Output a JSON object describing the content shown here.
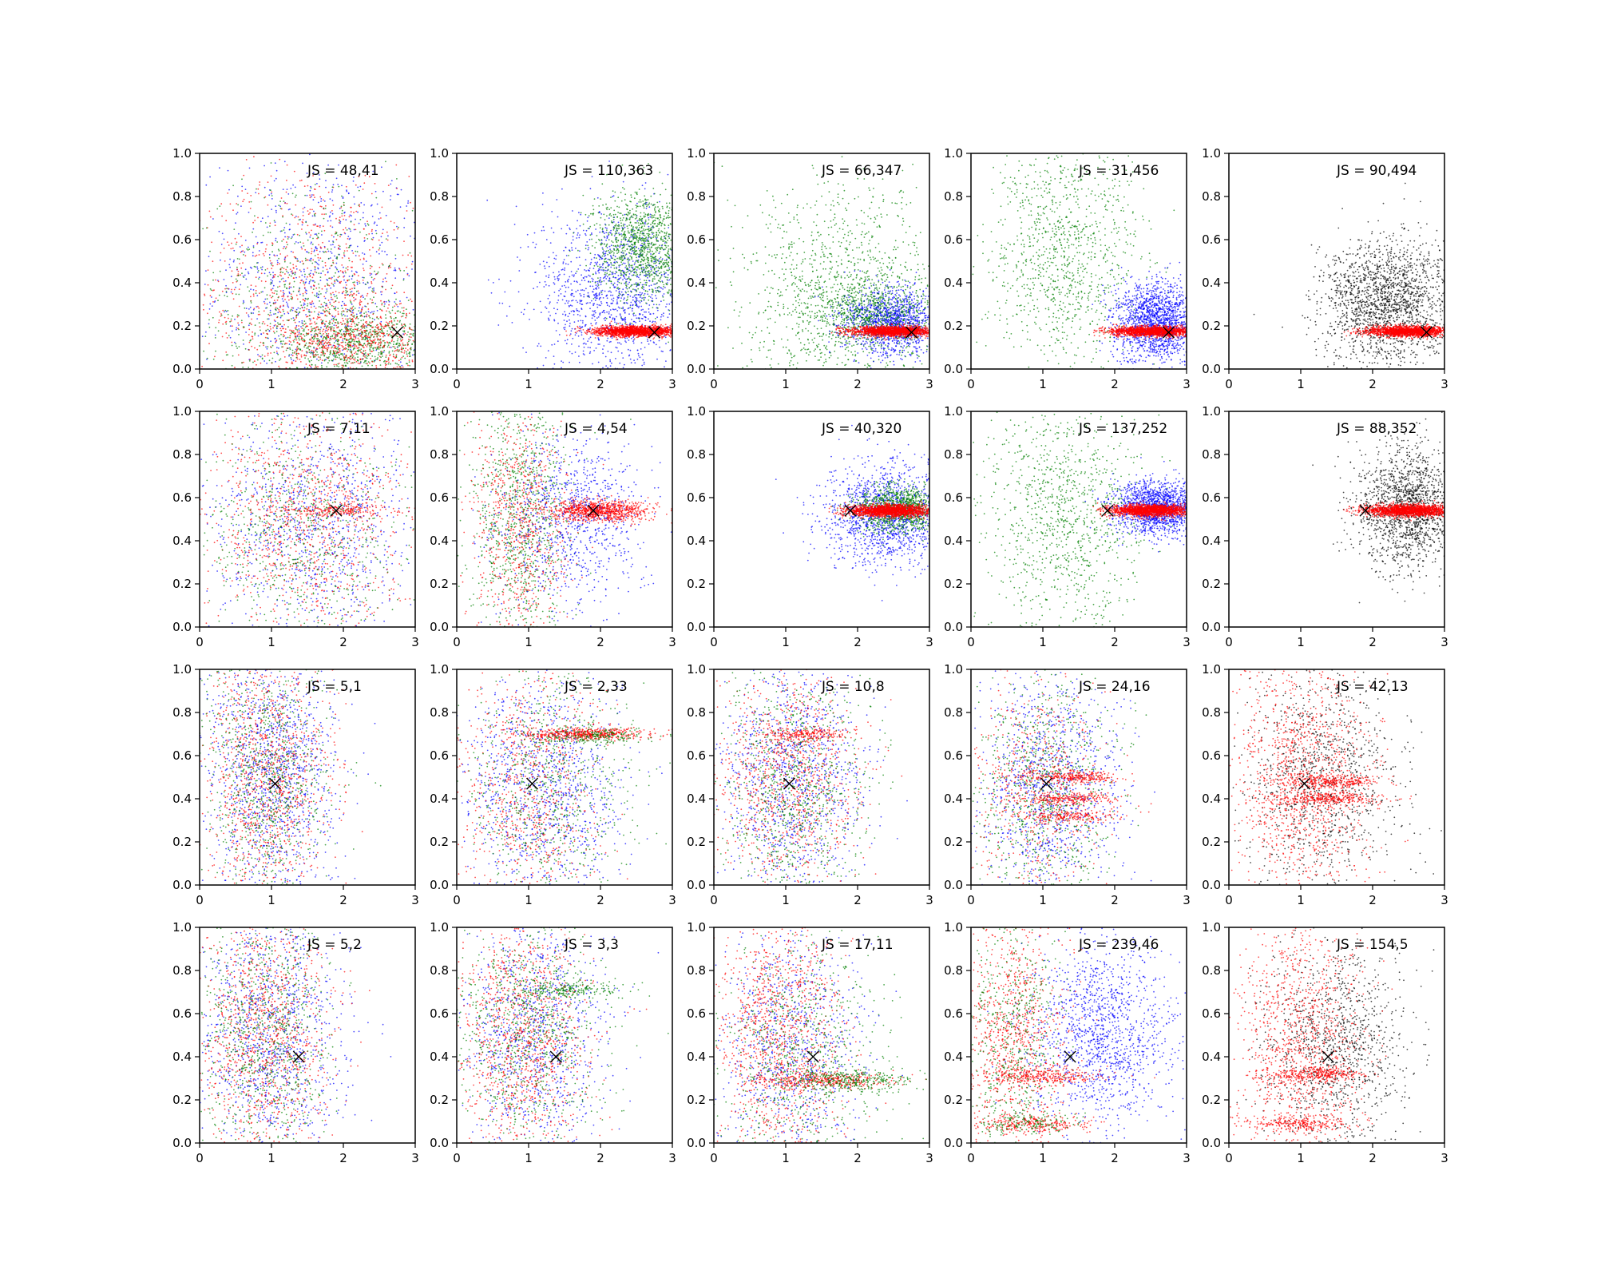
{
  "chart_data": {
    "type": "scatter",
    "grid": false,
    "xlim": [
      0,
      3
    ],
    "ylim": [
      0,
      1
    ],
    "xticks": [
      "0",
      "1",
      "2",
      "3"
    ],
    "yticks": [
      "0.0",
      "0.2",
      "0.4",
      "0.6",
      "0.8",
      "1.0"
    ],
    "series_colors": {
      "red": "#ff0000",
      "green": "#008000",
      "blue": "#0000ff",
      "black": "#000000"
    },
    "marker": {
      "symbol": "x",
      "color": "#000000"
    },
    "panels": [
      {
        "row": 0,
        "col": 0,
        "annotation": "JS = 48,41",
        "marker": [
          2.75,
          0.17
        ],
        "clouds": [
          {
            "color": "blue",
            "n": 700,
            "cx": 1.6,
            "cy": 0.4,
            "sx": 0.8,
            "sy": 0.3,
            "ymin": 0
          },
          {
            "color": "red",
            "n": 800,
            "cx": 1.6,
            "cy": 0.35,
            "sx": 0.8,
            "sy": 0.3,
            "ymin": 0
          },
          {
            "color": "green",
            "n": 500,
            "cx": 1.5,
            "cy": 0.3,
            "sx": 0.8,
            "sy": 0.3,
            "ymin": 0
          },
          {
            "color": "green",
            "n": 700,
            "cx": 2.2,
            "cy": 0.12,
            "sx": 0.6,
            "sy": 0.08,
            "ymin": 0
          },
          {
            "color": "red",
            "n": 500,
            "cx": 2.2,
            "cy": 0.13,
            "sx": 0.6,
            "sy": 0.08,
            "ymin": 0
          }
        ]
      },
      {
        "row": 0,
        "col": 1,
        "annotation": "JS = 110,363",
        "marker": [
          2.75,
          0.17
        ],
        "clouds": [
          {
            "color": "blue",
            "n": 1200,
            "cx": 2.2,
            "cy": 0.35,
            "sx": 0.55,
            "sy": 0.2
          },
          {
            "color": "green",
            "n": 1100,
            "cx": 2.6,
            "cy": 0.57,
            "sx": 0.35,
            "sy": 0.13
          },
          {
            "color": "red",
            "n": 1600,
            "cx": 2.5,
            "cy": 0.175,
            "sx": 0.3,
            "sy": 0.012,
            "xmin": 1.3
          }
        ]
      },
      {
        "row": 0,
        "col": 2,
        "annotation": "JS = 66,347",
        "marker": [
          2.75,
          0.17
        ],
        "clouds": [
          {
            "color": "green",
            "n": 1000,
            "cx": 1.8,
            "cy": 0.35,
            "sx": 0.7,
            "sy": 0.25
          },
          {
            "color": "blue",
            "n": 1200,
            "cx": 2.5,
            "cy": 0.22,
            "sx": 0.35,
            "sy": 0.08
          },
          {
            "color": "green",
            "n": 700,
            "cx": 2.2,
            "cy": 0.25,
            "sx": 0.45,
            "sy": 0.08
          },
          {
            "color": "red",
            "n": 1600,
            "cx": 2.5,
            "cy": 0.175,
            "sx": 0.3,
            "sy": 0.012,
            "xmin": 1.5
          }
        ]
      },
      {
        "row": 0,
        "col": 3,
        "annotation": "JS = 31,456",
        "marker": [
          2.75,
          0.17
        ],
        "clouds": [
          {
            "color": "green",
            "n": 1000,
            "cx": 1.3,
            "cy": 0.55,
            "sx": 0.55,
            "sy": 0.28
          },
          {
            "color": "blue",
            "n": 1500,
            "cx": 2.6,
            "cy": 0.22,
            "sx": 0.3,
            "sy": 0.09
          },
          {
            "color": "red",
            "n": 1600,
            "cx": 2.5,
            "cy": 0.175,
            "sx": 0.3,
            "sy": 0.012,
            "xmin": 1.7
          }
        ]
      },
      {
        "row": 0,
        "col": 4,
        "annotation": "JS = 90,494",
        "marker": [
          2.75,
          0.17
        ],
        "clouds": [
          {
            "color": "black",
            "n": 1800,
            "cx": 2.2,
            "cy": 0.3,
            "sx": 0.45,
            "sy": 0.15
          },
          {
            "color": "red",
            "n": 1600,
            "cx": 2.5,
            "cy": 0.175,
            "sx": 0.3,
            "sy": 0.012,
            "xmin": 1.6
          }
        ]
      },
      {
        "row": 1,
        "col": 0,
        "annotation": "JS = 7,11",
        "marker": [
          1.9,
          0.54
        ],
        "clouds": [
          {
            "color": "blue",
            "n": 900,
            "cx": 1.6,
            "cy": 0.5,
            "sx": 0.7,
            "sy": 0.28
          },
          {
            "color": "red",
            "n": 900,
            "cx": 1.5,
            "cy": 0.5,
            "sx": 0.7,
            "sy": 0.28
          },
          {
            "color": "green",
            "n": 700,
            "cx": 1.4,
            "cy": 0.45,
            "sx": 0.7,
            "sy": 0.28
          },
          {
            "color": "red",
            "n": 200,
            "cx": 2.0,
            "cy": 0.54,
            "sx": 0.4,
            "sy": 0.015
          }
        ]
      },
      {
        "row": 1,
        "col": 1,
        "annotation": "JS = 4,54",
        "marker": [
          1.9,
          0.54
        ],
        "clouds": [
          {
            "color": "green",
            "n": 900,
            "cx": 0.9,
            "cy": 0.5,
            "sx": 0.35,
            "sy": 0.3
          },
          {
            "color": "red",
            "n": 700,
            "cx": 0.9,
            "cy": 0.45,
            "sx": 0.35,
            "sy": 0.3
          },
          {
            "color": "blue",
            "n": 900,
            "cx": 1.6,
            "cy": 0.5,
            "sx": 0.5,
            "sy": 0.2
          },
          {
            "color": "red",
            "n": 900,
            "cx": 2.0,
            "cy": 0.54,
            "sx": 0.35,
            "sy": 0.025
          }
        ]
      },
      {
        "row": 1,
        "col": 2,
        "annotation": "JS = 40,320",
        "marker": [
          1.9,
          0.54
        ],
        "clouds": [
          {
            "color": "blue",
            "n": 1300,
            "cx": 2.4,
            "cy": 0.52,
            "sx": 0.45,
            "sy": 0.12
          },
          {
            "color": "green",
            "n": 1000,
            "cx": 2.6,
            "cy": 0.55,
            "sx": 0.3,
            "sy": 0.05
          },
          {
            "color": "red",
            "n": 1600,
            "cx": 2.45,
            "cy": 0.54,
            "sx": 0.3,
            "sy": 0.014,
            "xmin": 1.6
          }
        ]
      },
      {
        "row": 1,
        "col": 3,
        "annotation": "JS = 137,252",
        "marker": [
          1.9,
          0.54
        ],
        "clouds": [
          {
            "color": "green",
            "n": 1000,
            "cx": 1.3,
            "cy": 0.5,
            "sx": 0.55,
            "sy": 0.28
          },
          {
            "color": "blue",
            "n": 1400,
            "cx": 2.6,
            "cy": 0.55,
            "sx": 0.3,
            "sy": 0.06
          },
          {
            "color": "red",
            "n": 1600,
            "cx": 2.5,
            "cy": 0.54,
            "sx": 0.3,
            "sy": 0.014,
            "xmin": 1.7
          }
        ]
      },
      {
        "row": 1,
        "col": 4,
        "annotation": "JS = 88,352",
        "marker": [
          1.9,
          0.54
        ],
        "clouds": [
          {
            "color": "black",
            "n": 1500,
            "cx": 2.5,
            "cy": 0.55,
            "sx": 0.35,
            "sy": 0.14
          },
          {
            "color": "red",
            "n": 1600,
            "cx": 2.5,
            "cy": 0.54,
            "sx": 0.3,
            "sy": 0.014,
            "xmin": 1.6
          }
        ]
      },
      {
        "row": 2,
        "col": 0,
        "annotation": "JS = 5,1",
        "marker": [
          1.05,
          0.47
        ],
        "clouds": [
          {
            "color": "blue",
            "n": 1100,
            "cx": 1.0,
            "cy": 0.5,
            "sx": 0.45,
            "sy": 0.3
          },
          {
            "color": "red",
            "n": 1000,
            "cx": 0.95,
            "cy": 0.5,
            "sx": 0.45,
            "sy": 0.3
          },
          {
            "color": "green",
            "n": 800,
            "cx": 0.9,
            "cy": 0.5,
            "sx": 0.45,
            "sy": 0.3
          }
        ]
      },
      {
        "row": 2,
        "col": 1,
        "annotation": "JS = 2,33",
        "marker": [
          1.05,
          0.47
        ],
        "clouds": [
          {
            "color": "blue",
            "n": 1000,
            "cx": 1.2,
            "cy": 0.45,
            "sx": 0.55,
            "sy": 0.28
          },
          {
            "color": "red",
            "n": 700,
            "cx": 1.0,
            "cy": 0.45,
            "sx": 0.5,
            "sy": 0.28
          },
          {
            "color": "green",
            "n": 700,
            "cx": 1.3,
            "cy": 0.45,
            "sx": 0.55,
            "sy": 0.28
          },
          {
            "color": "red",
            "n": 500,
            "cx": 1.8,
            "cy": 0.7,
            "sx": 0.4,
            "sy": 0.015
          },
          {
            "color": "green",
            "n": 200,
            "cx": 1.9,
            "cy": 0.69,
            "sx": 0.4,
            "sy": 0.02
          }
        ]
      },
      {
        "row": 2,
        "col": 2,
        "annotation": "JS = 10,8",
        "marker": [
          1.05,
          0.47
        ],
        "clouds": [
          {
            "color": "blue",
            "n": 1000,
            "cx": 1.1,
            "cy": 0.5,
            "sx": 0.5,
            "sy": 0.28
          },
          {
            "color": "red",
            "n": 900,
            "cx": 1.0,
            "cy": 0.5,
            "sx": 0.5,
            "sy": 0.28
          },
          {
            "color": "green",
            "n": 800,
            "cx": 1.1,
            "cy": 0.45,
            "sx": 0.5,
            "sy": 0.28
          },
          {
            "color": "red",
            "n": 200,
            "cx": 1.3,
            "cy": 0.7,
            "sx": 0.3,
            "sy": 0.015
          }
        ]
      },
      {
        "row": 2,
        "col": 3,
        "annotation": "JS = 24,16",
        "marker": [
          1.05,
          0.47
        ],
        "clouds": [
          {
            "color": "blue",
            "n": 1000,
            "cx": 1.1,
            "cy": 0.45,
            "sx": 0.5,
            "sy": 0.28
          },
          {
            "color": "green",
            "n": 800,
            "cx": 1.0,
            "cy": 0.45,
            "sx": 0.5,
            "sy": 0.28
          },
          {
            "color": "red",
            "n": 500,
            "cx": 0.9,
            "cy": 0.45,
            "sx": 0.45,
            "sy": 0.28
          },
          {
            "color": "red",
            "n": 300,
            "cx": 1.4,
            "cy": 0.5,
            "sx": 0.35,
            "sy": 0.015
          },
          {
            "color": "red",
            "n": 250,
            "cx": 1.4,
            "cy": 0.4,
            "sx": 0.35,
            "sy": 0.015
          },
          {
            "color": "red",
            "n": 200,
            "cx": 1.4,
            "cy": 0.32,
            "sx": 0.35,
            "sy": 0.015
          }
        ]
      },
      {
        "row": 2,
        "col": 4,
        "annotation": "JS = 42,13",
        "marker": [
          1.05,
          0.47
        ],
        "clouds": [
          {
            "color": "black",
            "n": 1000,
            "cx": 1.3,
            "cy": 0.5,
            "sx": 0.55,
            "sy": 0.28
          },
          {
            "color": "red",
            "n": 1100,
            "cx": 1.0,
            "cy": 0.5,
            "sx": 0.5,
            "sy": 0.28
          },
          {
            "color": "red",
            "n": 300,
            "cx": 1.4,
            "cy": 0.48,
            "sx": 0.35,
            "sy": 0.015
          },
          {
            "color": "red",
            "n": 300,
            "cx": 1.4,
            "cy": 0.4,
            "sx": 0.35,
            "sy": 0.015
          }
        ]
      },
      {
        "row": 3,
        "col": 0,
        "annotation": "JS = 5,2",
        "marker": [
          1.38,
          0.4
        ],
        "clouds": [
          {
            "color": "blue",
            "n": 1000,
            "cx": 1.0,
            "cy": 0.5,
            "sx": 0.5,
            "sy": 0.3
          },
          {
            "color": "red",
            "n": 1000,
            "cx": 0.9,
            "cy": 0.5,
            "sx": 0.45,
            "sy": 0.3
          },
          {
            "color": "green",
            "n": 800,
            "cx": 0.9,
            "cy": 0.5,
            "sx": 0.45,
            "sy": 0.3
          }
        ]
      },
      {
        "row": 3,
        "col": 1,
        "annotation": "JS = 3,3",
        "marker": [
          1.38,
          0.4
        ],
        "clouds": [
          {
            "color": "blue",
            "n": 900,
            "cx": 1.1,
            "cy": 0.5,
            "sx": 0.5,
            "sy": 0.28
          },
          {
            "color": "red",
            "n": 1000,
            "cx": 0.9,
            "cy": 0.5,
            "sx": 0.45,
            "sy": 0.28
          },
          {
            "color": "green",
            "n": 800,
            "cx": 1.0,
            "cy": 0.5,
            "sx": 0.5,
            "sy": 0.28
          },
          {
            "color": "green",
            "n": 200,
            "cx": 1.6,
            "cy": 0.71,
            "sx": 0.4,
            "sy": 0.02
          }
        ]
      },
      {
        "row": 3,
        "col": 2,
        "annotation": "JS = 17,11",
        "marker": [
          1.38,
          0.4
        ],
        "clouds": [
          {
            "color": "blue",
            "n": 800,
            "cx": 1.1,
            "cy": 0.45,
            "sx": 0.5,
            "sy": 0.28
          },
          {
            "color": "red",
            "n": 1000,
            "cx": 0.9,
            "cy": 0.5,
            "sx": 0.45,
            "sy": 0.28
          },
          {
            "color": "green",
            "n": 700,
            "cx": 1.2,
            "cy": 0.4,
            "sx": 0.55,
            "sy": 0.28
          },
          {
            "color": "red",
            "n": 350,
            "cx": 1.6,
            "cy": 0.29,
            "sx": 0.45,
            "sy": 0.018
          },
          {
            "color": "green",
            "n": 300,
            "cx": 1.9,
            "cy": 0.29,
            "sx": 0.45,
            "sy": 0.025
          }
        ]
      },
      {
        "row": 3,
        "col": 3,
        "annotation": "JS = 239,46",
        "marker": [
          1.38,
          0.4
        ],
        "clouds": [
          {
            "color": "blue",
            "n": 1300,
            "cx": 1.8,
            "cy": 0.5,
            "sx": 0.5,
            "sy": 0.22
          },
          {
            "color": "red",
            "n": 800,
            "cx": 0.6,
            "cy": 0.5,
            "sx": 0.35,
            "sy": 0.28
          },
          {
            "color": "green",
            "n": 500,
            "cx": 0.6,
            "cy": 0.5,
            "sx": 0.35,
            "sy": 0.28
          },
          {
            "color": "red",
            "n": 300,
            "cx": 1.0,
            "cy": 0.31,
            "sx": 0.4,
            "sy": 0.02
          },
          {
            "color": "red",
            "n": 250,
            "cx": 0.8,
            "cy": 0.09,
            "sx": 0.4,
            "sy": 0.02
          },
          {
            "color": "green",
            "n": 150,
            "cx": 0.8,
            "cy": 0.09,
            "sx": 0.4,
            "sy": 0.025
          }
        ]
      },
      {
        "row": 3,
        "col": 4,
        "annotation": "JS = 154,5",
        "marker": [
          1.38,
          0.4
        ],
        "clouds": [
          {
            "color": "black",
            "n": 1100,
            "cx": 1.5,
            "cy": 0.45,
            "sx": 0.5,
            "sy": 0.25
          },
          {
            "color": "red",
            "n": 1000,
            "cx": 1.0,
            "cy": 0.5,
            "sx": 0.45,
            "sy": 0.28
          },
          {
            "color": "red",
            "n": 300,
            "cx": 1.2,
            "cy": 0.32,
            "sx": 0.35,
            "sy": 0.015
          },
          {
            "color": "red",
            "n": 250,
            "cx": 1.0,
            "cy": 0.09,
            "sx": 0.4,
            "sy": 0.018
          }
        ]
      }
    ]
  }
}
